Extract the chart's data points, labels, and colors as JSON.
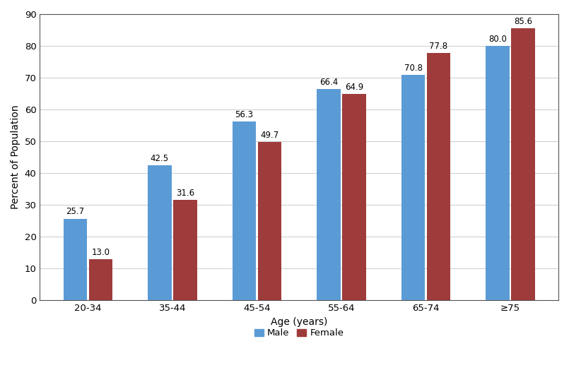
{
  "categories": [
    "20-34",
    "35-44",
    "45-54",
    "55-64",
    "65-74",
    "≥75"
  ],
  "male_values": [
    25.7,
    42.5,
    56.3,
    66.4,
    70.8,
    80.0
  ],
  "female_values": [
    13.0,
    31.6,
    49.7,
    64.9,
    77.8,
    85.6
  ],
  "male_color": "#5B9BD5",
  "female_color": "#9E3B3B",
  "xlabel": "Age (years)",
  "ylabel": "Percent of Population",
  "ylim": [
    0,
    90
  ],
  "yticks": [
    0,
    10,
    20,
    30,
    40,
    50,
    60,
    70,
    80,
    90
  ],
  "legend_labels": [
    "Male",
    "Female"
  ],
  "bar_width": 0.28,
  "label_fontsize": 8.5,
  "axis_fontsize": 10,
  "tick_fontsize": 9.5,
  "background_color": "#ffffff",
  "grid_color": "#d0d0d0",
  "spine_color": "#555555"
}
